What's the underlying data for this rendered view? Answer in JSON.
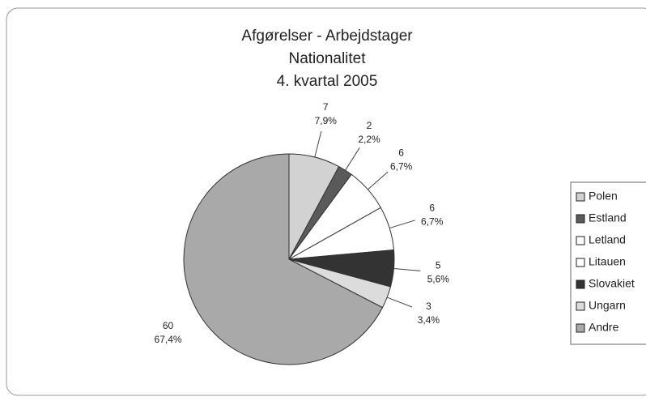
{
  "chart_data": {
    "type": "pie",
    "title": [
      "Afgørelser - Arbejdstager",
      "Nationalitet",
      "4. kvartal 2005"
    ],
    "categories": [
      "Polen",
      "Estland",
      "Letland",
      "Litauen",
      "Slovakiet",
      "Ungarn",
      "Andre"
    ],
    "values": [
      7,
      2,
      6,
      6,
      5,
      3,
      60
    ],
    "percentages": [
      7.9,
      2.2,
      6.7,
      6.7,
      5.6,
      3.4,
      67.4
    ],
    "percentage_labels": [
      "7,9%",
      "2,2%",
      "6,7%",
      "6,7%",
      "5,6%",
      "3,4%",
      "67,4%"
    ],
    "colors": [
      "#d2d2d2",
      "#5a5a5a",
      "#ffffff",
      "#ffffff",
      "#333333",
      "#dcdcdc",
      "#a9a9a9"
    ],
    "legend": "right"
  }
}
